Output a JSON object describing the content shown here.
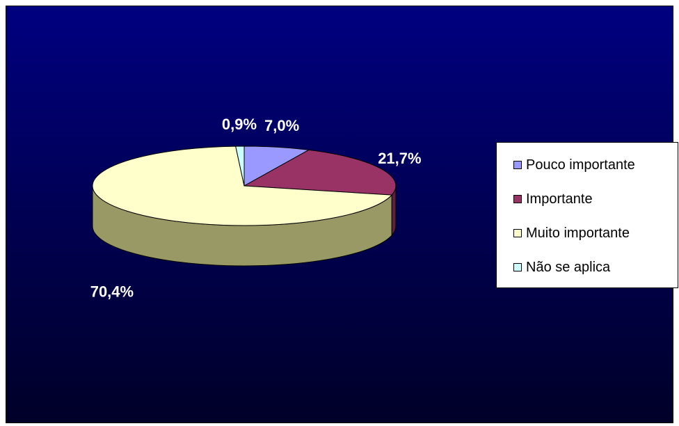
{
  "chart_data": {
    "type": "pie",
    "categories": [
      "Pouco importante",
      "Importante",
      "Muito importante",
      "Não se aplica"
    ],
    "values": [
      7.0,
      21.7,
      70.4,
      0.9
    ],
    "data_labels": [
      "7,0%",
      "21,7%",
      "70,4%",
      "0,9%"
    ],
    "colors": [
      "#9999ff",
      "#993366",
      "#ffffcc",
      "#ccffff"
    ],
    "side_colors": [
      "#5c5c99",
      "#5c1f3d",
      "#999966",
      "#7a9999"
    ],
    "legend_placement": "right",
    "three_d": true
  }
}
